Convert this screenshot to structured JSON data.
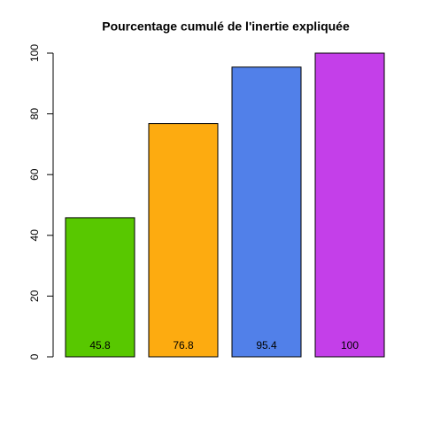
{
  "chart_data": {
    "type": "bar",
    "title": "Pourcentage cumulé de l'inertie expliquée",
    "values": [
      45.8,
      76.8,
      95.4,
      100
    ],
    "colors": [
      "#58c800",
      "#fdab10",
      "#5180e9",
      "#c43fe9"
    ],
    "ylim": [
      0,
      100
    ],
    "yticks": [
      0,
      20,
      40,
      60,
      80,
      100
    ]
  }
}
